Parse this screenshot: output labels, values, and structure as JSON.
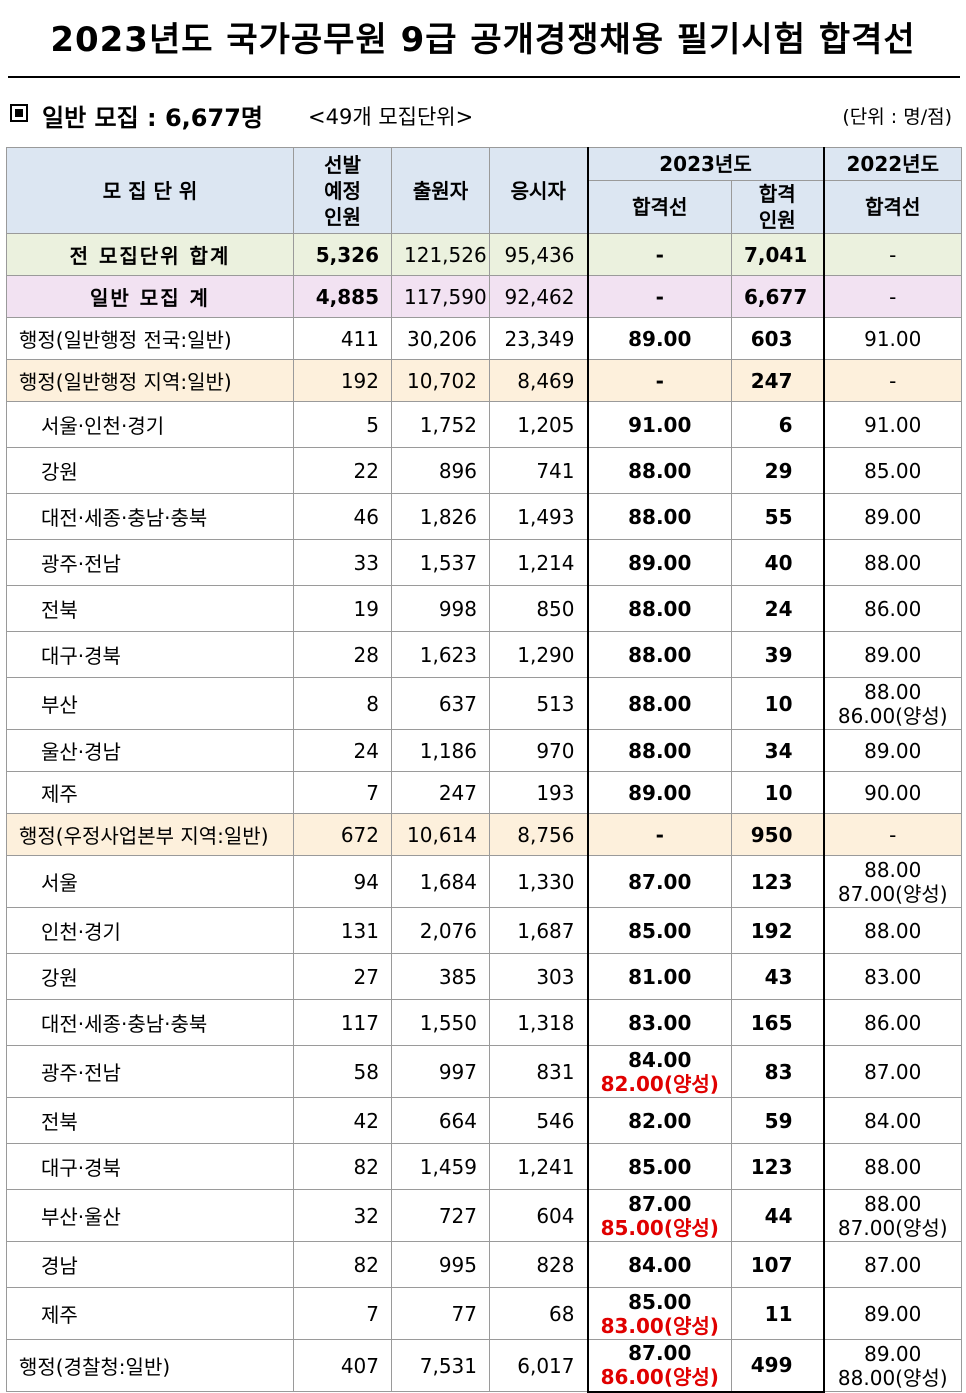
{
  "title": "2023년도 국가공무원 9급 공개경쟁채용 필기시험 합격선",
  "subheading": {
    "main": "일반 모집 : 6,677명",
    "count": "<49개 모집단위>",
    "unit": "(단위 : 명/점)"
  },
  "headers": {
    "unit": "모 집 단 위",
    "planned_1": "선발",
    "planned_2": "예정",
    "planned_3": "인원",
    "applicants": "출원자",
    "takers": "응시자",
    "year2023": "2023년도",
    "cutoff": "합격선",
    "passed_1": "합격",
    "passed_2": "인원",
    "year2022": "2022년도",
    "cutoff_2022": "합격선"
  },
  "rows": [
    {
      "type": "total",
      "name": "전 모집단위 합계",
      "planned": "5,326",
      "applicants": "121,526",
      "takers": "95,436",
      "cutoff": "-",
      "cutoff2": "",
      "passed": "7,041",
      "prev": "-",
      "prev2": ""
    },
    {
      "type": "general",
      "name": "일반 모집 계",
      "planned": "4,885",
      "applicants": "117,590",
      "takers": "92,462",
      "cutoff": "-",
      "cutoff2": "",
      "passed": "6,677",
      "prev": "-",
      "prev2": ""
    },
    {
      "type": "plain",
      "name": "행정(일반행정 전국:일반)",
      "planned": "411",
      "applicants": "30,206",
      "takers": "23,349",
      "cutoff": "89.00",
      "cutoff2": "",
      "passed": "603",
      "prev": "91.00",
      "prev2": ""
    },
    {
      "type": "group",
      "name": "행정(일반행정 지역:일반)",
      "planned": "192",
      "applicants": "10,702",
      "takers": "8,469",
      "cutoff": "-",
      "cutoff2": "",
      "passed": "247",
      "prev": "-",
      "prev2": ""
    },
    {
      "type": "sub",
      "name": "서울·인천·경기",
      "planned": "5",
      "applicants": "1,752",
      "takers": "1,205",
      "cutoff": "91.00",
      "cutoff2": "",
      "passed": "6",
      "prev": "91.00",
      "prev2": ""
    },
    {
      "type": "sub",
      "name": "강원",
      "planned": "22",
      "applicants": "896",
      "takers": "741",
      "cutoff": "88.00",
      "cutoff2": "",
      "passed": "29",
      "prev": "85.00",
      "prev2": ""
    },
    {
      "type": "sub",
      "name": "대전·세종·충남·충북",
      "planned": "46",
      "applicants": "1,826",
      "takers": "1,493",
      "cutoff": "88.00",
      "cutoff2": "",
      "passed": "55",
      "prev": "89.00",
      "prev2": ""
    },
    {
      "type": "sub",
      "name": "광주·전남",
      "planned": "33",
      "applicants": "1,537",
      "takers": "1,214",
      "cutoff": "89.00",
      "cutoff2": "",
      "passed": "40",
      "prev": "88.00",
      "prev2": ""
    },
    {
      "type": "sub",
      "name": "전북",
      "planned": "19",
      "applicants": "998",
      "takers": "850",
      "cutoff": "88.00",
      "cutoff2": "",
      "passed": "24",
      "prev": "86.00",
      "prev2": ""
    },
    {
      "type": "sub",
      "name": "대구·경북",
      "planned": "28",
      "applicants": "1,623",
      "takers": "1,290",
      "cutoff": "88.00",
      "cutoff2": "",
      "passed": "39",
      "prev": "89.00",
      "prev2": ""
    },
    {
      "type": "sub",
      "name": "부산",
      "planned": "8",
      "applicants": "637",
      "takers": "513",
      "cutoff": "88.00",
      "cutoff2": "",
      "passed": "10",
      "prev": "88.00",
      "prev2": "86.00(양성)"
    },
    {
      "type": "sub",
      "name": "울산·경남",
      "planned": "24",
      "applicants": "1,186",
      "takers": "970",
      "cutoff": "88.00",
      "cutoff2": "",
      "passed": "34",
      "prev": "89.00",
      "prev2": ""
    },
    {
      "type": "sub",
      "name": "제주",
      "planned": "7",
      "applicants": "247",
      "takers": "193",
      "cutoff": "89.00",
      "cutoff2": "",
      "passed": "10",
      "prev": "90.00",
      "prev2": ""
    },
    {
      "type": "group",
      "name": "행정(우정사업본부 지역:일반)",
      "planned": "672",
      "applicants": "10,614",
      "takers": "8,756",
      "cutoff": "-",
      "cutoff2": "",
      "passed": "950",
      "prev": "-",
      "prev2": ""
    },
    {
      "type": "sub",
      "name": "서울",
      "planned": "94",
      "applicants": "1,684",
      "takers": "1,330",
      "cutoff": "87.00",
      "cutoff2": "",
      "passed": "123",
      "prev": "88.00",
      "prev2": "87.00(양성)"
    },
    {
      "type": "sub",
      "name": "인천·경기",
      "planned": "131",
      "applicants": "2,076",
      "takers": "1,687",
      "cutoff": "85.00",
      "cutoff2": "",
      "passed": "192",
      "prev": "88.00",
      "prev2": ""
    },
    {
      "type": "sub",
      "name": "강원",
      "planned": "27",
      "applicants": "385",
      "takers": "303",
      "cutoff": "81.00",
      "cutoff2": "",
      "passed": "43",
      "prev": "83.00",
      "prev2": ""
    },
    {
      "type": "sub",
      "name": "대전·세종·충남·충북",
      "planned": "117",
      "applicants": "1,550",
      "takers": "1,318",
      "cutoff": "83.00",
      "cutoff2": "",
      "passed": "165",
      "prev": "86.00",
      "prev2": ""
    },
    {
      "type": "sub",
      "name": "광주·전남",
      "planned": "58",
      "applicants": "997",
      "takers": "831",
      "cutoff": "84.00",
      "cutoff2": "82.00(양성)",
      "passed": "83",
      "prev": "87.00",
      "prev2": ""
    },
    {
      "type": "sub",
      "name": "전북",
      "planned": "42",
      "applicants": "664",
      "takers": "546",
      "cutoff": "82.00",
      "cutoff2": "",
      "passed": "59",
      "prev": "84.00",
      "prev2": ""
    },
    {
      "type": "sub",
      "name": "대구·경북",
      "planned": "82",
      "applicants": "1,459",
      "takers": "1,241",
      "cutoff": "85.00",
      "cutoff2": "",
      "passed": "123",
      "prev": "88.00",
      "prev2": ""
    },
    {
      "type": "sub",
      "name": "부산·울산",
      "planned": "32",
      "applicants": "727",
      "takers": "604",
      "cutoff": "87.00",
      "cutoff2": "85.00(양성)",
      "passed": "44",
      "prev": "88.00",
      "prev2": "87.00(양성)"
    },
    {
      "type": "sub",
      "name": "경남",
      "planned": "82",
      "applicants": "995",
      "takers": "828",
      "cutoff": "84.00",
      "cutoff2": "",
      "passed": "107",
      "prev": "87.00",
      "prev2": ""
    },
    {
      "type": "sub",
      "name": "제주",
      "planned": "7",
      "applicants": "77",
      "takers": "68",
      "cutoff": "85.00",
      "cutoff2": "83.00(양성)",
      "passed": "11",
      "prev": "89.00",
      "prev2": ""
    },
    {
      "type": "plain",
      "name": "행정(경찰청:일반)",
      "planned": "407",
      "applicants": "7,531",
      "takers": "6,017",
      "cutoff": "87.00",
      "cutoff2": "86.00(양성)",
      "passed": "499",
      "prev": "89.00",
      "prev2": "88.00(양성)"
    }
  ]
}
